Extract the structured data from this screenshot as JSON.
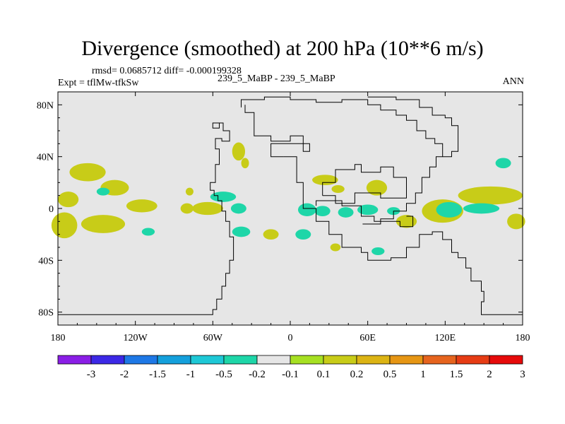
{
  "title": "Divergence (smoothed) at 200 hPa (10**6 m/s)",
  "stats_line": "rmsd= 0.0685712 diff= -0.000199328",
  "expt_line": "Expt = tflMw-tfkSw",
  "case_line": "239_5_MaBP - 239_5_MaBP",
  "season": "ANN",
  "colors": {
    "land_ocean_bg": "#e6e6e6",
    "coastline": "#000000",
    "neg_light": "#1ed6a8",
    "neg_mid": "#20d2cc",
    "pos_light": "#a6e022",
    "pos_mid": "#c8cc18"
  },
  "chart_data": {
    "type": "heatmap",
    "projection": "cylindrical equidistant",
    "xlim": [
      -180,
      180
    ],
    "ylim": [
      -90,
      90
    ],
    "x_ticks": [
      {
        "value": -180,
        "label": "180"
      },
      {
        "value": -120,
        "label": "120W"
      },
      {
        "value": -60,
        "label": "60W"
      },
      {
        "value": 0,
        "label": "0"
      },
      {
        "value": 60,
        "label": "60E"
      },
      {
        "value": 120,
        "label": "120E"
      },
      {
        "value": 180,
        "label": "180"
      }
    ],
    "y_ticks": [
      {
        "value": 80,
        "label": "80N"
      },
      {
        "value": 40,
        "label": "40N"
      },
      {
        "value": 0,
        "label": "0"
      },
      {
        "value": -40,
        "label": "40S"
      },
      {
        "value": -80,
        "label": "80S"
      }
    ],
    "colorbar": {
      "levels": [
        "-3",
        "-2",
        "-1.5",
        "-1",
        "-0.5",
        "-0.2",
        "-0.1",
        "0.1",
        "0.2",
        "0.5",
        "1",
        "1.5",
        "2",
        "3"
      ],
      "colors": [
        "#8a1ee6",
        "#3c28e6",
        "#1e78e6",
        "#14a0dc",
        "#1ec8d6",
        "#1ed6a8",
        "#e6e6e6",
        "#a6e022",
        "#c8cc18",
        "#dcb414",
        "#e69614",
        "#e6641e",
        "#e63c14",
        "#e60a0a"
      ]
    },
    "blobs": [
      {
        "lon": -157,
        "lat": 28,
        "rx": 14,
        "ry": 7,
        "value": 0.2
      },
      {
        "lon": -136,
        "lat": 16,
        "rx": 11,
        "ry": 6,
        "value": 0.2
      },
      {
        "lon": -145,
        "lat": 13,
        "rx": 5,
        "ry": 3,
        "value": -0.2
      },
      {
        "lon": -172,
        "lat": 7,
        "rx": 8,
        "ry": 6,
        "value": 0.2
      },
      {
        "lon": -175,
        "lat": -13,
        "rx": 10,
        "ry": 10,
        "value": 0.2
      },
      {
        "lon": -145,
        "lat": -12,
        "rx": 17,
        "ry": 7,
        "value": 0.2
      },
      {
        "lon": -115,
        "lat": 2,
        "rx": 12,
        "ry": 5,
        "value": 0.2
      },
      {
        "lon": -110,
        "lat": -18,
        "rx": 5,
        "ry": 3,
        "value": -0.2
      },
      {
        "lon": -80,
        "lat": 0,
        "rx": 5,
        "ry": 4,
        "value": 0.2
      },
      {
        "lon": -78,
        "lat": 13,
        "rx": 3,
        "ry": 3,
        "value": 0.2
      },
      {
        "lon": -64,
        "lat": 0,
        "rx": 12,
        "ry": 5,
        "value": 0.2
      },
      {
        "lon": -52,
        "lat": 9,
        "rx": 10,
        "ry": 4,
        "value": -0.2
      },
      {
        "lon": -40,
        "lat": 0,
        "rx": 6,
        "ry": 4,
        "value": -0.2
      },
      {
        "lon": -40,
        "lat": 44,
        "rx": 5,
        "ry": 7,
        "value": 0.2
      },
      {
        "lon": -35,
        "lat": 35,
        "rx": 3,
        "ry": 4,
        "value": 0.2
      },
      {
        "lon": -38,
        "lat": -18,
        "rx": 7,
        "ry": 4,
        "value": -0.2
      },
      {
        "lon": -15,
        "lat": -20,
        "rx": 6,
        "ry": 4,
        "value": 0.2
      },
      {
        "lon": 10,
        "lat": -20,
        "rx": 6,
        "ry": 4,
        "value": -0.2
      },
      {
        "lon": 13,
        "lat": -1,
        "rx": 7,
        "ry": 5,
        "value": -0.2
      },
      {
        "lon": 27,
        "lat": 22,
        "rx": 10,
        "ry": 4,
        "value": 0.2
      },
      {
        "lon": 25,
        "lat": -2,
        "rx": 6,
        "ry": 4,
        "value": -0.2
      },
      {
        "lon": 37,
        "lat": 15,
        "rx": 5,
        "ry": 3,
        "value": 0.2
      },
      {
        "lon": 43,
        "lat": -3,
        "rx": 6,
        "ry": 4,
        "value": -0.2
      },
      {
        "lon": 60,
        "lat": -1,
        "rx": 8,
        "ry": 4,
        "value": -0.2
      },
      {
        "lon": 67,
        "lat": 16,
        "rx": 8,
        "ry": 6,
        "value": 0.2
      },
      {
        "lon": 80,
        "lat": -2,
        "rx": 5,
        "ry": 3,
        "value": -0.2
      },
      {
        "lon": 90,
        "lat": -10,
        "rx": 8,
        "ry": 5,
        "value": 0.2
      },
      {
        "lon": 68,
        "lat": -33,
        "rx": 5,
        "ry": 3,
        "value": -0.2
      },
      {
        "lon": 35,
        "lat": -30,
        "rx": 4,
        "ry": 3,
        "value": 0.2
      },
      {
        "lon": 118,
        "lat": -2,
        "rx": 16,
        "ry": 9,
        "value": 0.2
      },
      {
        "lon": 123,
        "lat": -1,
        "rx": 10,
        "ry": 6,
        "value": -0.2
      },
      {
        "lon": 155,
        "lat": 10,
        "rx": 25,
        "ry": 7,
        "value": 0.2
      },
      {
        "lon": 148,
        "lat": 0,
        "rx": 14,
        "ry": 4,
        "value": -0.2
      },
      {
        "lon": 175,
        "lat": -10,
        "rx": 7,
        "ry": 6,
        "value": 0.2
      },
      {
        "lon": 165,
        "lat": 35,
        "rx": 6,
        "ry": 4,
        "value": -0.2
      }
    ]
  }
}
